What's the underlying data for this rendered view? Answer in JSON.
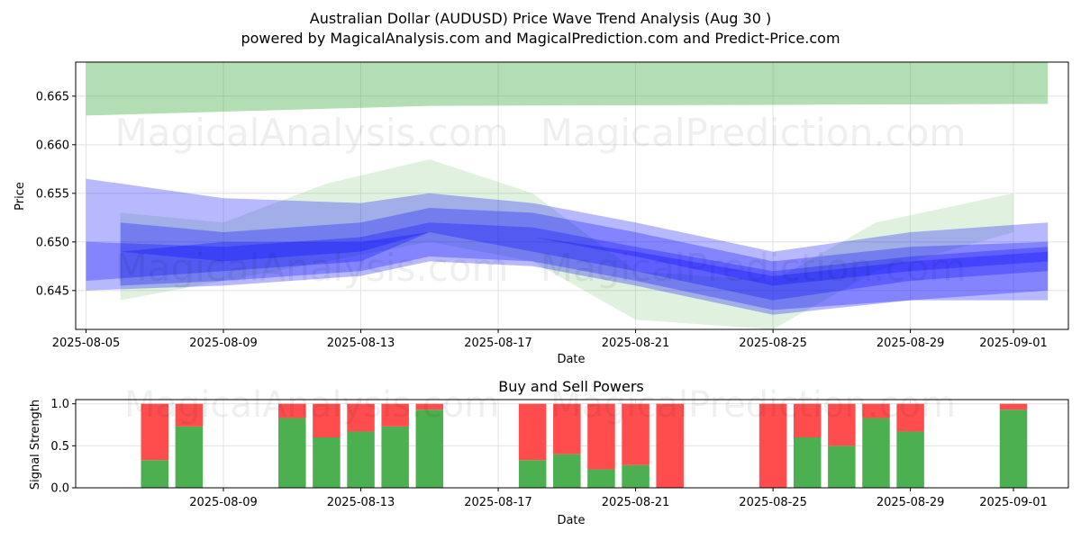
{
  "title_line1": "Australian Dollar (AUDUSD) Price Wave Trend Analysis (Aug 30 )",
  "title_line2": "powered by MagicalAnalysis.com and MagicalPrediction.com and Predict-Price.com",
  "watermarks": [
    "MagicalAnalysis.com",
    "MagicalPrediction.com"
  ],
  "colors": {
    "green_band": "#2ca02c",
    "blue_band": "#0000ff",
    "buy": "#4caf50",
    "sell": "#ff4d4d",
    "grid": "#dddddd"
  },
  "chart_data": [
    {
      "type": "area",
      "title": "",
      "xlabel": "Date",
      "ylabel": "Price",
      "xlim": [
        "2025-08-05",
        "2025-09-02"
      ],
      "ylim": [
        0.641,
        0.6685
      ],
      "x_ticks": [
        "2025-08-05",
        "2025-08-09",
        "2025-08-13",
        "2025-08-17",
        "2025-08-21",
        "2025-08-25",
        "2025-08-29",
        "2025-09-01"
      ],
      "y_ticks": [
        "0.645",
        "0.650",
        "0.655",
        "0.660",
        "0.665"
      ],
      "grid": true,
      "top_band": {
        "x": [
          "2025-08-05",
          "2025-08-15",
          "2025-08-25",
          "2025-09-02"
        ],
        "upper": [
          0.6685,
          0.6685,
          0.6685,
          0.6685
        ],
        "lower": [
          0.663,
          0.664,
          0.6641,
          0.6642
        ]
      },
      "series": [
        {
          "x": [
            "2025-08-05",
            "2025-08-09",
            "2025-08-13",
            "2025-08-15",
            "2025-08-18",
            "2025-08-21",
            "2025-08-25",
            "2025-08-29",
            "2025-09-02"
          ],
          "upper": [
            0.6565,
            0.6545,
            0.654,
            0.655,
            0.654,
            0.652,
            0.649,
            0.651,
            0.652
          ],
          "lower": [
            0.646,
            0.647,
            0.648,
            0.651,
            0.649,
            0.647,
            0.644,
            0.646,
            0.647
          ]
        },
        {
          "x": [
            "2025-08-06",
            "2025-08-09",
            "2025-08-13",
            "2025-08-15",
            "2025-08-18",
            "2025-08-21",
            "2025-08-25",
            "2025-08-29",
            "2025-09-02"
          ],
          "upper": [
            0.652,
            0.651,
            0.652,
            0.6535,
            0.653,
            0.651,
            0.648,
            0.6495,
            0.65
          ],
          "lower": [
            0.649,
            0.648,
            0.649,
            0.651,
            0.6505,
            0.6485,
            0.6455,
            0.647,
            0.648
          ]
        },
        {
          "x": [
            "2025-08-05",
            "2025-08-09",
            "2025-08-13",
            "2025-08-15",
            "2025-08-18",
            "2025-08-21",
            "2025-08-25",
            "2025-08-29",
            "2025-09-02"
          ],
          "upper": [
            0.65,
            0.6495,
            0.6505,
            0.652,
            0.6515,
            0.6495,
            0.647,
            0.6485,
            0.6495
          ],
          "lower": [
            0.645,
            0.6455,
            0.6465,
            0.648,
            0.6475,
            0.6455,
            0.6425,
            0.644,
            0.644
          ]
        },
        {
          "x": [
            "2025-08-06",
            "2025-08-09",
            "2025-08-13",
            "2025-08-15",
            "2025-08-18",
            "2025-08-21",
            "2025-08-25",
            "2025-08-29",
            "2025-09-02"
          ],
          "upper": [
            0.649,
            0.65,
            0.65,
            0.651,
            0.6505,
            0.649,
            0.6465,
            0.648,
            0.649
          ],
          "lower": [
            0.6455,
            0.646,
            0.647,
            0.6485,
            0.648,
            0.646,
            0.643,
            0.644,
            0.645
          ]
        }
      ],
      "green_waves": [
        {
          "x": [
            "2025-08-06",
            "2025-08-09",
            "2025-08-12",
            "2025-08-15",
            "2025-08-18",
            "2025-08-21",
            "2025-08-25",
            "2025-08-28",
            "2025-09-01"
          ],
          "upper": [
            0.653,
            0.652,
            0.656,
            0.6585,
            0.655,
            0.647,
            0.646,
            0.652,
            0.655
          ],
          "lower": [
            0.644,
            0.646,
            0.648,
            0.65,
            0.648,
            0.642,
            0.641,
            0.647,
            0.651
          ]
        }
      ]
    },
    {
      "type": "bar",
      "title": "Buy and Sell Powers",
      "xlabel": "Date",
      "ylabel": "Signal Strength",
      "ylim": [
        0,
        1.05
      ],
      "y_ticks": [
        "0.0",
        "0.5",
        "1.0"
      ],
      "x_ticks": [
        "2025-08-09",
        "2025-08-13",
        "2025-08-17",
        "2025-08-21",
        "2025-08-25",
        "2025-08-29",
        "2025-09-01"
      ],
      "grid": true,
      "categories": [
        "2025-08-07",
        "2025-08-08",
        "2025-08-11",
        "2025-08-12",
        "2025-08-13",
        "2025-08-14",
        "2025-08-15",
        "2025-08-18",
        "2025-08-19",
        "2025-08-20",
        "2025-08-21",
        "2025-08-22",
        "2025-08-25",
        "2025-08-26",
        "2025-08-27",
        "2025-08-28",
        "2025-08-29",
        "2025-09-01"
      ],
      "series": [
        {
          "name": "Buy",
          "values": [
            0.33,
            0.73,
            0.83,
            0.6,
            0.67,
            0.73,
            0.93,
            0.33,
            0.4,
            0.22,
            0.27,
            0.0,
            0.0,
            0.6,
            0.5,
            0.83,
            0.67,
            0.93
          ]
        },
        {
          "name": "Sell",
          "values": [
            0.67,
            0.27,
            0.17,
            0.4,
            0.33,
            0.27,
            0.07,
            0.67,
            0.6,
            0.78,
            0.73,
            1.0,
            1.0,
            0.4,
            0.5,
            0.17,
            0.33,
            0.07
          ]
        }
      ]
    }
  ]
}
